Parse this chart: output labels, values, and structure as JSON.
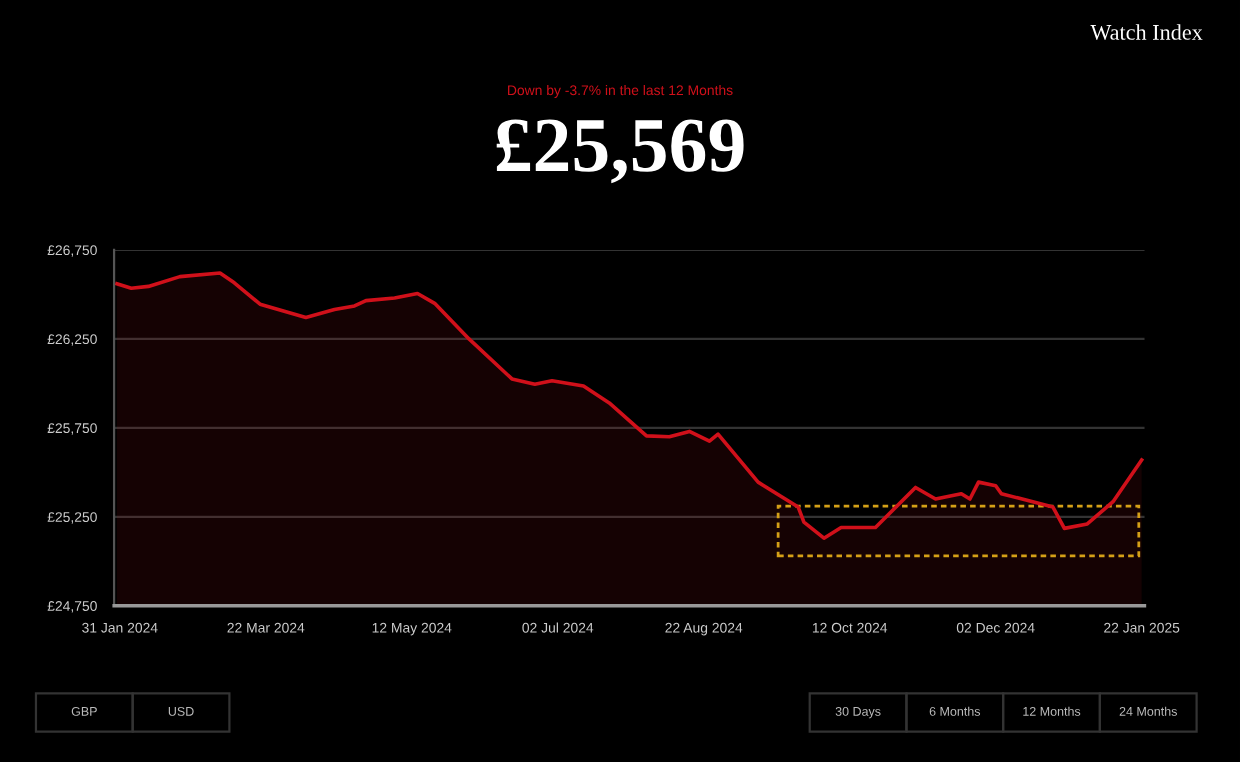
{
  "chart_data": {
    "type": "area",
    "title": "Watch Index",
    "subtitle": "Down by -3.7% in the last 12 Months",
    "annotations": [
      "£25,569",
      "GBP",
      "USD",
      "30 Days",
      "6 Months",
      "12 Months",
      "24 Months"
    ],
    "x": [
      "2024-01-30",
      "2024-02-04",
      "2024-02-10",
      "2024-02-21",
      "2024-03-06",
      "2024-03-11",
      "2024-03-20",
      "2024-04-05",
      "2024-04-15",
      "2024-04-22",
      "2024-04-26",
      "2024-05-06",
      "2024-05-14",
      "2024-05-20",
      "2024-06-01",
      "2024-06-16",
      "2024-06-24",
      "2024-06-30",
      "2024-07-11",
      "2024-07-20",
      "2024-08-02",
      "2024-08-10",
      "2024-08-17",
      "2024-08-24",
      "2024-08-27",
      "2024-09-10",
      "2024-09-24",
      "2024-09-26",
      "2024-10-03",
      "2024-10-09",
      "2024-10-21",
      "2024-11-04",
      "2024-11-11",
      "2024-11-20",
      "2024-11-23",
      "2024-11-26",
      "2024-12-02",
      "2024-12-04",
      "2024-12-22",
      "2024-12-26",
      "2025-01-03",
      "2025-01-12",
      "2025-01-22"
    ],
    "series": [
      {
        "color": "#d0101a",
        "values": [
          26560,
          26535,
          26545,
          26600,
          26620,
          26565,
          26445,
          26370,
          26415,
          26435,
          26465,
          26480,
          26505,
          26450,
          26250,
          26025,
          25995,
          26015,
          25985,
          25890,
          25705,
          25700,
          25730,
          25675,
          25715,
          25445,
          25305,
          25220,
          25130,
          25190,
          25190,
          25415,
          25350,
          25380,
          25350,
          25445,
          25425,
          25380,
          25305,
          25185,
          25210,
          25335,
          25569
        ]
      }
    ],
    "xlim": [
      "2024-01-29",
      "2025-01-23"
    ],
    "xticks": [
      {
        "value": "2024-01-31",
        "label": "31 Jan 2024"
      },
      {
        "value": "2024-03-22",
        "label": "22 Mar 2024"
      },
      {
        "value": "2024-05-12",
        "label": "12 May 2024"
      },
      {
        "value": "2024-07-02",
        "label": "02 Jul 2024"
      },
      {
        "value": "2024-08-22",
        "label": "22 Aug 2024"
      },
      {
        "value": "2024-10-12",
        "label": "12 Oct 2024"
      },
      {
        "value": "2024-12-02",
        "label": "02 Dec 2024"
      },
      {
        "value": "2025-01-22",
        "label": "22 Jan 2025"
      }
    ],
    "ylim": [
      24750,
      26750
    ],
    "yticks": [
      {
        "value": 24750,
        "label": "£24,750"
      },
      {
        "value": 25250,
        "label": "£25,250"
      },
      {
        "value": 25750,
        "label": "£25,750"
      },
      {
        "value": 26250,
        "label": "£26,250"
      },
      {
        "value": 26750,
        "label": "£26,750"
      }
    ],
    "grid": "y",
    "legend": false,
    "marker": "none",
    "line_style": "solid"
  }
}
